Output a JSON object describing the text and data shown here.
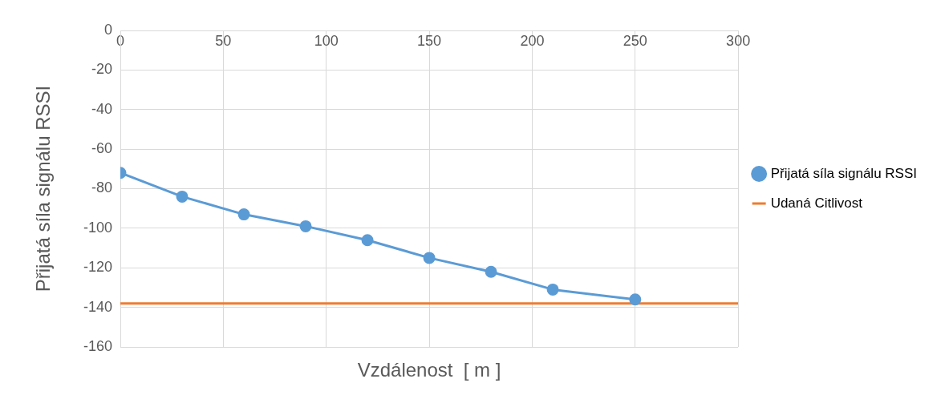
{
  "chart_data": {
    "type": "line",
    "xlabel": "Vzdálenost  [ m ]",
    "ylabel": "Přijatá síla signálu RSSI",
    "xlim": [
      0,
      300
    ],
    "xticks": [
      0,
      50,
      100,
      150,
      200,
      250,
      300
    ],
    "ylim": [
      -160,
      0
    ],
    "yticks": [
      -160,
      -140,
      -120,
      -100,
      -80,
      -60,
      -40,
      -20,
      0
    ],
    "grid": true,
    "legend": "right",
    "series": [
      {
        "name": "Přijatá síla signálu RSSI",
        "color": "#5b9bd5",
        "marker": "circle",
        "x": [
          0,
          30,
          60,
          90,
          120,
          150,
          180,
          210,
          250
        ],
        "values": [
          -72,
          -84,
          -93,
          -99,
          -106,
          -115,
          -122,
          -131,
          -136
        ]
      },
      {
        "name": "Udaná Citlivost",
        "color": "#ed7d31",
        "marker": "none",
        "x": [
          0,
          300
        ],
        "values": [
          -138,
          -138
        ]
      }
    ]
  }
}
